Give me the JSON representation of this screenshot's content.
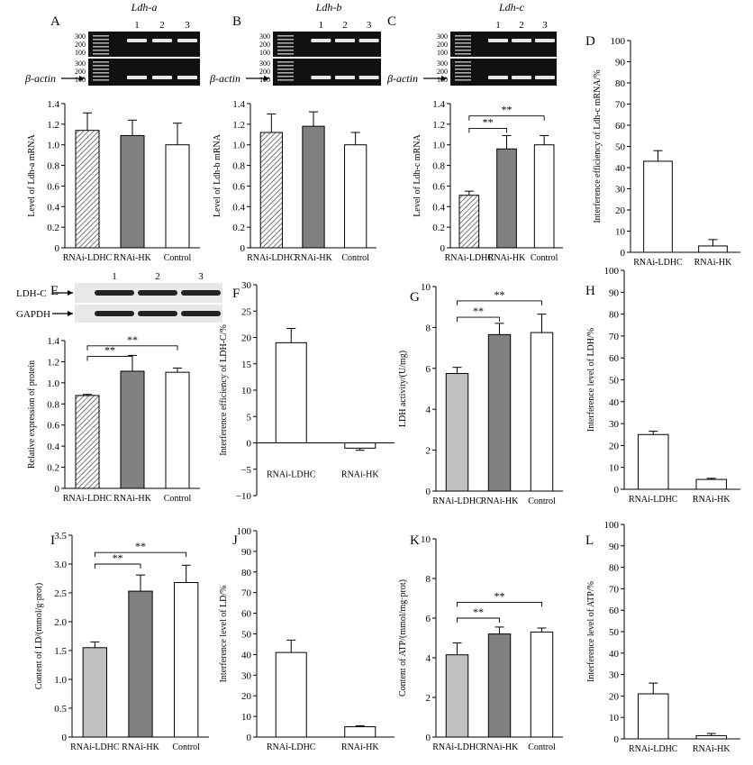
{
  "colors": {
    "hatch": "#8a8a8a",
    "darkgray": "#808080",
    "lightgray": "#c0c0c0",
    "white": "#ffffff",
    "axis": "#000000",
    "gel_bg": "#111111",
    "band": "#e6e6e6"
  },
  "gels": [
    {
      "panel": "A",
      "title": "Ldh-a",
      "lanes": [
        "1",
        "2",
        "3"
      ],
      "ladder": [
        "300",
        "200",
        "100"
      ],
      "ladder2": [
        "300",
        "200",
        "100"
      ],
      "bottom_label": "β-actin"
    },
    {
      "panel": "B",
      "title": "Ldh-b",
      "lanes": [
        "1",
        "2",
        "3"
      ],
      "ladder": [
        "300",
        "200",
        "100"
      ],
      "ladder2": [
        "300",
        "200",
        "100"
      ],
      "bottom_label": "β-actin"
    },
    {
      "panel": "C",
      "title": "Ldh-c",
      "lanes": [
        "1",
        "2",
        "3"
      ],
      "ladder": [
        "300",
        "200",
        "100"
      ],
      "ladder2": [
        "300",
        "200",
        "100"
      ],
      "bottom_label": "β-actin"
    },
    {
      "panel": "E",
      "title": "",
      "lanes": [
        "1",
        "2",
        "3"
      ],
      "ladder": [],
      "ladder2": [],
      "labels": [
        "LDH-C",
        "GAPDH"
      ]
    }
  ],
  "chart_data": [
    {
      "panel": "A",
      "type": "bar",
      "categories": [
        "RNAi-LDHC",
        "RNAi-HK",
        "Control"
      ],
      "values": [
        1.14,
        1.09,
        1.0
      ],
      "errors": [
        0.17,
        0.15,
        0.21
      ],
      "ylabel": "Level of Ldh-a mRNA",
      "ylim": [
        0,
        1.4
      ],
      "ticks": [
        "0",
        "0.2",
        "0.4",
        "0.6",
        "0.8",
        "1.0",
        "1.2",
        "1.4"
      ],
      "fills": [
        "hatch",
        "darkgray",
        "white"
      ],
      "sig": []
    },
    {
      "panel": "B",
      "type": "bar",
      "categories": [
        "RNAi-LDHC",
        "RNAi-HK",
        "Control"
      ],
      "values": [
        1.12,
        1.18,
        1.0
      ],
      "errors": [
        0.18,
        0.14,
        0.12
      ],
      "ylabel": "Level of Ldh-b mRNA",
      "ylim": [
        0,
        1.4
      ],
      "ticks": [
        "0",
        "0.2",
        "0.4",
        "0.6",
        "0.8",
        "1.0",
        "1.2",
        "1.4"
      ],
      "fills": [
        "hatch",
        "darkgray",
        "white"
      ],
      "sig": []
    },
    {
      "panel": "C",
      "type": "bar",
      "categories": [
        "RNAi-LDHC",
        "RNAi-HK",
        "Control"
      ],
      "values": [
        0.51,
        0.96,
        1.0
      ],
      "errors": [
        0.04,
        0.13,
        0.09
      ],
      "ylabel": "Level of Ldh-c mRNA",
      "ylim": [
        0,
        1.4
      ],
      "ticks": [
        "0",
        "0.2",
        "0.4",
        "0.6",
        "0.8",
        "1.0",
        "1.2",
        "1.4"
      ],
      "fills": [
        "hatch",
        "darkgray",
        "white"
      ],
      "sig": [
        {
          "from": 0,
          "to": 1,
          "label": "**",
          "y": 1.16
        },
        {
          "from": 0,
          "to": 2,
          "label": "**",
          "y": 1.28
        }
      ]
    },
    {
      "panel": "D",
      "type": "bar",
      "categories": [
        "RNAi-LDHC",
        "RNAi-HK"
      ],
      "values": [
        43,
        3
      ],
      "errors": [
        5,
        3
      ],
      "ylabel": "Interference efficiency of Ldh-c mRNA/%",
      "ylim": [
        0,
        100
      ],
      "ticks": [
        "0",
        "10",
        "20",
        "30",
        "40",
        "50",
        "60",
        "70",
        "80",
        "90",
        "100"
      ],
      "fills": [
        "white",
        "white"
      ],
      "sig": []
    },
    {
      "panel": "E",
      "type": "bar",
      "categories": [
        "RNAi-LDHC",
        "RNAi-HK",
        "Control"
      ],
      "values": [
        0.88,
        1.11,
        1.1
      ],
      "errors": [
        0.01,
        0.15,
        0.04
      ],
      "ylabel": "Relative expression of protein",
      "ylim": [
        0,
        1.4
      ],
      "ticks": [
        "0",
        "0.2",
        "0.4",
        "0.6",
        "0.8",
        "1.0",
        "1.2",
        "1.4"
      ],
      "fills": [
        "hatch",
        "darkgray",
        "white"
      ],
      "sig": [
        {
          "from": 0,
          "to": 1,
          "label": "**",
          "y": 1.25
        },
        {
          "from": 0,
          "to": 2,
          "label": "**",
          "y": 1.35
        }
      ]
    },
    {
      "panel": "F",
      "type": "bar",
      "categories": [
        "RNAi-LDHC",
        "RNAi-HK"
      ],
      "values": [
        19,
        -1
      ],
      "errors": [
        2.7,
        0.4
      ],
      "ylabel": "Interference efficiency of LDH-C/%",
      "ylim": [
        -10,
        30
      ],
      "ticks": [
        "−10",
        "−5",
        "0",
        "5",
        "10",
        "15",
        "20",
        "25",
        "30"
      ],
      "fills": [
        "white",
        "white"
      ],
      "sig": []
    },
    {
      "panel": "G",
      "type": "bar",
      "categories": [
        "RNAi-LDHC",
        "RNAi-HK",
        "Control"
      ],
      "values": [
        5.75,
        7.65,
        7.75
      ],
      "errors": [
        0.3,
        0.55,
        0.9
      ],
      "ylabel": "LDH activity/(U/mg)",
      "ylim": [
        0,
        10
      ],
      "ticks": [
        "0",
        "2",
        "4",
        "6",
        "8",
        "10"
      ],
      "fills": [
        "lightgray",
        "darkgray",
        "white"
      ],
      "sig": [
        {
          "from": 0,
          "to": 1,
          "label": "**",
          "y": 8.5
        },
        {
          "from": 0,
          "to": 2,
          "label": "**",
          "y": 9.3
        }
      ]
    },
    {
      "panel": "H",
      "type": "bar",
      "categories": [
        "RNAi-LDHC",
        "RNAi-HK"
      ],
      "values": [
        25,
        4.5
      ],
      "errors": [
        1.5,
        0.5
      ],
      "ylabel": "Interference level of LDH/%",
      "ylim": [
        0,
        100
      ],
      "ticks": [
        "0",
        "10",
        "20",
        "30",
        "40",
        "50",
        "60",
        "70",
        "80",
        "90",
        "100"
      ],
      "fills": [
        "white",
        "white"
      ],
      "sig": []
    },
    {
      "panel": "I",
      "type": "bar",
      "categories": [
        "RNAi-LDHC",
        "RNAi-HK",
        "Control"
      ],
      "values": [
        1.55,
        2.53,
        2.68
      ],
      "errors": [
        0.1,
        0.28,
        0.3
      ],
      "ylabel": "Content of LD/(mmol/g·prot)",
      "ylim": [
        0,
        3.5
      ],
      "ticks": [
        "0",
        "0.5",
        "1.0",
        "1.5",
        "2.0",
        "2.5",
        "3.0",
        "3.5"
      ],
      "fills": [
        "lightgray",
        "darkgray",
        "white"
      ],
      "sig": [
        {
          "from": 0,
          "to": 1,
          "label": "**",
          "y": 3.0
        },
        {
          "from": 0,
          "to": 2,
          "label": "**",
          "y": 3.2
        }
      ]
    },
    {
      "panel": "J",
      "type": "bar",
      "categories": [
        "RNAi-LDHC",
        "RNAi-HK"
      ],
      "values": [
        41,
        5
      ],
      "errors": [
        6,
        0.5
      ],
      "ylabel": "Interference level of LD/%",
      "ylim": [
        0,
        100
      ],
      "ticks": [
        "0",
        "10",
        "20",
        "30",
        "40",
        "50",
        "60",
        "70",
        "80",
        "90",
        "100"
      ],
      "fills": [
        "white",
        "white"
      ],
      "sig": []
    },
    {
      "panel": "K",
      "type": "bar",
      "categories": [
        "RNAi-LDHC",
        "RNAi-HK",
        "Control"
      ],
      "values": [
        4.15,
        5.2,
        5.3
      ],
      "errors": [
        0.6,
        0.35,
        0.2
      ],
      "ylabel": "Content of ATP/(mmol/mg·prot)",
      "ylim": [
        0,
        10
      ],
      "ticks": [
        "0",
        "2",
        "4",
        "6",
        "8",
        "10"
      ],
      "fills": [
        "lightgray",
        "darkgray",
        "white"
      ],
      "sig": [
        {
          "from": 0,
          "to": 1,
          "label": "**",
          "y": 6.0
        },
        {
          "from": 0,
          "to": 2,
          "label": "**",
          "y": 6.8
        }
      ]
    },
    {
      "panel": "L",
      "type": "bar",
      "categories": [
        "RNAi-LDHC",
        "RNAi-HK"
      ],
      "values": [
        21,
        1.5
      ],
      "errors": [
        5,
        1
      ],
      "ylabel": "Interference level of ATP/%",
      "ylim": [
        0,
        100
      ],
      "ticks": [
        "0",
        "10",
        "20",
        "30",
        "40",
        "50",
        "60",
        "70",
        "80",
        "90",
        "100"
      ],
      "fills": [
        "white",
        "white"
      ],
      "sig": []
    }
  ]
}
